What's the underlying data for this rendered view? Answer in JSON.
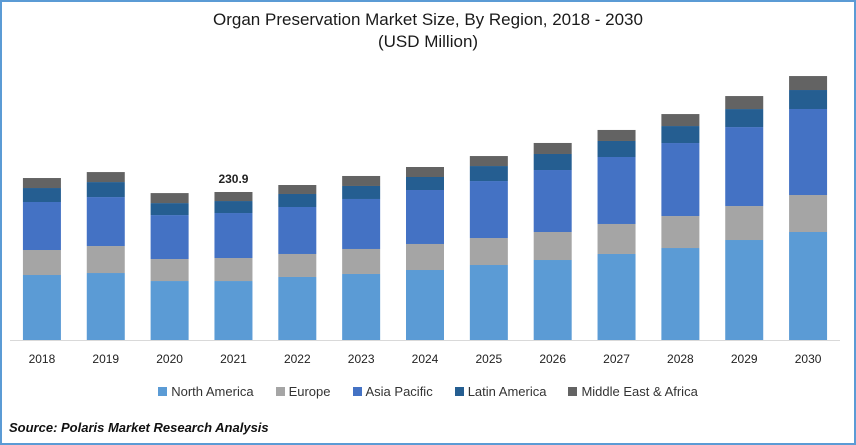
{
  "chart_data": {
    "type": "bar",
    "stacked": true,
    "title": "Organ Preservation Market Size, By Region, 2018 - 2030",
    "subtitle": "(USD Million)",
    "xlabel": "",
    "ylabel": "",
    "categories": [
      "2018",
      "2019",
      "2020",
      "2021",
      "2022",
      "2023",
      "2024",
      "2025",
      "2026",
      "2027",
      "2028",
      "2029",
      "2030"
    ],
    "series": [
      {
        "name": "North America",
        "color": "#5b9bd5",
        "values": [
          101.4,
          104.5,
          92.0,
          92.0,
          98.3,
          103.0,
          109.2,
          117.0,
          124.8,
          134.2,
          143.5,
          156.0,
          168.5
        ]
      },
      {
        "name": "Europe",
        "color": "#a5a5a5",
        "values": [
          39.0,
          42.1,
          34.3,
          35.9,
          35.9,
          39.0,
          40.6,
          42.1,
          43.7,
          46.8,
          49.9,
          53.0,
          57.7
        ]
      },
      {
        "name": "Asia Pacific",
        "color": "#4472c4",
        "values": [
          74.9,
          76.4,
          68.6,
          70.2,
          73.3,
          78.0,
          84.2,
          88.9,
          96.7,
          104.5,
          113.9,
          123.2,
          134.2
        ]
      },
      {
        "name": "Latin America",
        "color": "#255e91",
        "values": [
          21.8,
          23.4,
          18.7,
          18.7,
          20.3,
          20.3,
          20.3,
          23.4,
          25.0,
          25.0,
          26.5,
          28.1,
          29.6
        ]
      },
      {
        "name": "Middle East & Africa",
        "color": "#636363",
        "values": [
          15.6,
          15.6,
          15.6,
          14.1,
          14.0,
          15.6,
          15.6,
          15.6,
          17.2,
          17.2,
          18.7,
          20.3,
          21.8
        ]
      }
    ],
    "annotations": [
      {
        "category": "2021",
        "text": "230.9"
      }
    ],
    "ylim": [
      0,
      420
    ],
    "grid": false,
    "legend": "bottom",
    "source": "Source: Polaris  Market Research Analysis"
  }
}
